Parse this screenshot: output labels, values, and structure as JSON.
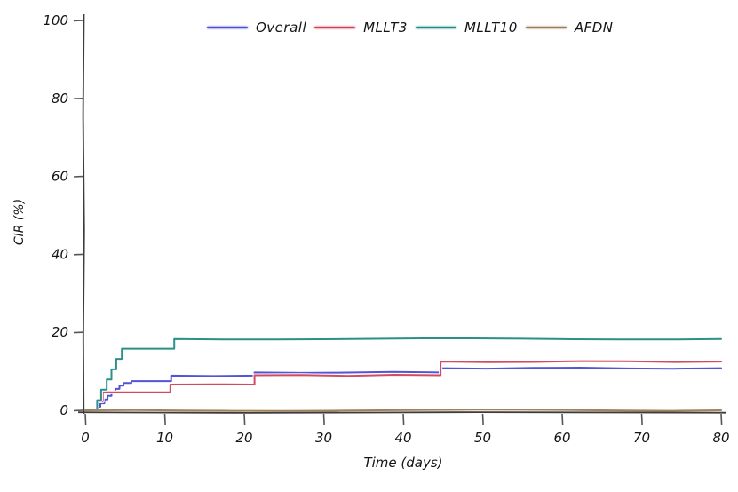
{
  "chart_data": {
    "type": "line",
    "subtype": "step-after",
    "style": "xkcd-hand-drawn",
    "title": "",
    "xlabel": "Time (days)",
    "ylabel": "CIR (%)",
    "xlim": [
      0,
      80
    ],
    "ylim": [
      0,
      100
    ],
    "xticks": [
      0,
      10,
      20,
      30,
      40,
      50,
      60,
      70,
      80
    ],
    "yticks": [
      0,
      20,
      40,
      60,
      80,
      100
    ],
    "grid": false,
    "legend_position": "top-center",
    "legend_frame": false,
    "series": [
      {
        "name": "Overall",
        "color": "#4a4ad6",
        "points": [
          [
            0,
            0
          ],
          [
            1.5,
            0.9
          ],
          [
            1.9,
            1.8
          ],
          [
            2.4,
            2.8
          ],
          [
            2.8,
            3.7
          ],
          [
            3.3,
            4.6
          ],
          [
            3.8,
            5.5
          ],
          [
            4.3,
            6.3
          ],
          [
            4.8,
            7.0
          ],
          [
            5.8,
            7.5
          ],
          [
            10.8,
            8.9
          ],
          [
            21.3,
            9.7
          ],
          [
            44.6,
            10.8
          ],
          [
            80,
            10.8
          ]
        ]
      },
      {
        "name": "MLLT3",
        "color": "#cf4257",
        "points": [
          [
            0,
            0
          ],
          [
            1.5,
            2.3
          ],
          [
            2.2,
            4.6
          ],
          [
            10.7,
            6.6
          ],
          [
            21.3,
            9.0
          ],
          [
            44.7,
            12.5
          ],
          [
            80,
            12.5
          ]
        ]
      },
      {
        "name": "MLLT10",
        "color": "#1f8a82",
        "points": [
          [
            0,
            0
          ],
          [
            1.5,
            2.6
          ],
          [
            2.0,
            5.3
          ],
          [
            2.7,
            7.9
          ],
          [
            3.3,
            10.5
          ],
          [
            3.9,
            13.2
          ],
          [
            4.6,
            15.8
          ],
          [
            11.2,
            18.3
          ],
          [
            80,
            18.3
          ]
        ]
      },
      {
        "name": "AFDN",
        "color": "#9e7b52",
        "points": [
          [
            0,
            0
          ],
          [
            80,
            0
          ]
        ]
      }
    ],
    "axis_color": "#3c3c3c",
    "tick_color": "#555555",
    "tick_label_color": "#141414"
  }
}
